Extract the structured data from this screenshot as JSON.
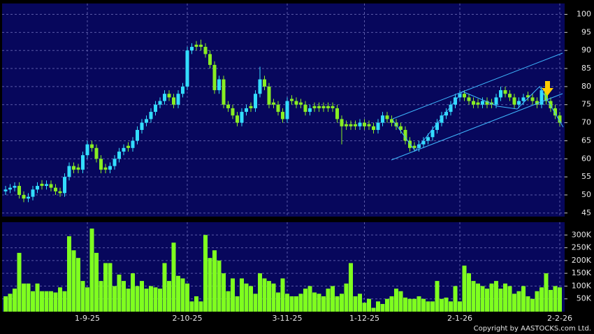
{
  "chart_data": [
    {
      "type": "candlestick",
      "up_color": "#33ddff",
      "down_color": "#88ee22",
      "ylim": [
        44,
        103
      ],
      "yticks": [
        45,
        50,
        55,
        60,
        65,
        70,
        75,
        80,
        85,
        90,
        95,
        100
      ],
      "grid": true,
      "open": [
        51,
        51.5,
        52,
        52.5,
        50,
        49,
        49.5,
        51.5,
        53.1,
        52.5,
        53,
        52,
        51,
        50.5,
        55,
        58,
        57.6,
        57,
        61,
        64,
        63,
        60,
        57.6,
        57,
        58,
        60,
        62,
        63.6,
        63,
        65,
        68,
        70,
        71,
        73,
        75,
        76,
        78,
        77,
        75,
        78,
        80,
        90,
        91.6,
        91.6,
        91,
        89,
        86,
        79,
        82,
        75,
        74,
        72,
        70,
        73,
        74.6,
        74,
        78,
        82,
        80,
        75.6,
        75,
        73,
        71,
        76.6,
        76,
        75.6,
        75,
        73,
        74.6,
        74.6,
        74.6,
        74.6,
        74.6,
        74,
        71,
        69.6,
        69.6,
        69.6,
        69,
        70,
        69.6,
        69,
        68,
        70,
        72,
        71,
        70,
        69,
        68,
        65,
        63.6,
        63,
        64,
        65,
        66,
        68,
        70,
        72,
        73,
        75,
        77,
        78,
        77,
        76,
        75.6,
        75,
        76,
        75.6,
        75,
        77,
        79,
        78,
        77,
        75,
        76,
        77.6,
        77,
        76,
        75,
        79,
        76,
        74,
        72
      ],
      "high": [
        52.5,
        53,
        53.5,
        53.5,
        51,
        50.5,
        52.5,
        53.5,
        54.1,
        54,
        54,
        53,
        52,
        56,
        59,
        59,
        58.6,
        62,
        65,
        65,
        64,
        61,
        58.6,
        59,
        61,
        63,
        64,
        64.6,
        66,
        69,
        71,
        72,
        74,
        76,
        77,
        79,
        79,
        78,
        79,
        81,
        91,
        92,
        92.6,
        93,
        92,
        90,
        87,
        83,
        83,
        76,
        75,
        73,
        74,
        75,
        75.6,
        79,
        85.5,
        83,
        81,
        76.6,
        76,
        74,
        77,
        77.6,
        77,
        76.6,
        76,
        75,
        75.6,
        75.6,
        75.6,
        75.6,
        75.6,
        75,
        72,
        70.6,
        70.6,
        70.6,
        71,
        71,
        70.6,
        70,
        71,
        73,
        73,
        72,
        71,
        70,
        69,
        66,
        64.6,
        65,
        66,
        67,
        69,
        71,
        73,
        74,
        76,
        78,
        79,
        79,
        78,
        77,
        76.6,
        77,
        77,
        76.6,
        78,
        80,
        80,
        79,
        78,
        77,
        78,
        78.6,
        78,
        77,
        80,
        80,
        77,
        75,
        73
      ],
      "low": [
        50,
        50.5,
        51,
        49,
        48,
        48,
        48.5,
        50.5,
        51.5,
        51.5,
        51,
        50,
        49.5,
        49.5,
        54,
        56,
        56,
        56,
        60,
        62,
        59,
        56,
        56,
        56,
        57,
        59,
        61,
        62,
        62,
        64,
        67,
        69,
        70,
        72,
        74,
        75,
        76,
        74,
        74,
        77,
        79,
        89,
        90,
        90,
        88,
        85,
        78,
        78,
        74,
        73,
        71,
        69,
        69,
        72,
        73,
        73,
        77,
        79,
        74,
        74,
        72,
        70,
        70,
        75,
        74,
        74,
        72,
        72,
        73,
        73,
        73,
        73,
        73,
        70,
        64,
        68,
        68,
        68,
        68,
        68,
        68,
        67,
        67,
        69,
        70,
        69,
        68,
        67,
        64,
        62,
        62,
        62,
        63,
        64,
        65,
        67,
        69,
        71,
        72,
        74,
        76,
        76,
        75,
        74,
        74,
        74,
        74,
        74,
        74,
        76,
        77,
        76,
        74,
        74,
        75,
        76,
        75,
        74,
        74,
        75,
        73,
        71,
        69
      ],
      "close": [
        51.5,
        52,
        52.5,
        50,
        49,
        49.5,
        51.5,
        52.5,
        52.5,
        53,
        52,
        51,
        50.5,
        55,
        58,
        57,
        57,
        61,
        64,
        63,
        60,
        57,
        57,
        58,
        60,
        62,
        63,
        63,
        65,
        68,
        70,
        71,
        73,
        75,
        76,
        78,
        77,
        75,
        78,
        80,
        90,
        91,
        91,
        91,
        89,
        86,
        79,
        82,
        75,
        74,
        72,
        70,
        73,
        74,
        74,
        78,
        82,
        80,
        75,
        75,
        73,
        71,
        76,
        76,
        75,
        75,
        73,
        74,
        74,
        74,
        74,
        74,
        74,
        71,
        69,
        69,
        69,
        69,
        70,
        69,
        69,
        68,
        70,
        72,
        71,
        70,
        69,
        68,
        65,
        63,
        63,
        64,
        65,
        66,
        68,
        70,
        72,
        73,
        75,
        77,
        78,
        77,
        76,
        75,
        75,
        76,
        75,
        75,
        77,
        79,
        78,
        77,
        75,
        76,
        77,
        77,
        76,
        75,
        79,
        76,
        74,
        72,
        70
      ]
    },
    {
      "type": "bar",
      "color": "#7fff1f",
      "ylim": [
        0,
        350000
      ],
      "yticks": [
        {
          "value": 50000,
          "label": "50K"
        },
        {
          "value": 100000,
          "label": "100K"
        },
        {
          "value": 150000,
          "label": "150K"
        },
        {
          "value": 200000,
          "label": "200K"
        },
        {
          "value": 250000,
          "label": "250K"
        },
        {
          "value": 300000,
          "label": "300K"
        }
      ],
      "grid": true,
      "categories": [
        null,
        null,
        null,
        null,
        null,
        null,
        null,
        null,
        null,
        null,
        null,
        null,
        null,
        null,
        null,
        null,
        null,
        null,
        "1-9-25",
        null,
        null,
        null,
        null,
        null,
        null,
        null,
        null,
        null,
        null,
        null,
        null,
        null,
        null,
        null,
        null,
        null,
        null,
        null,
        null,
        null,
        "2-10-25",
        null,
        null,
        null,
        null,
        null,
        null,
        null,
        null,
        null,
        null,
        null,
        null,
        null,
        null,
        null,
        null,
        null,
        null,
        null,
        null,
        null,
        "3-11-25",
        null,
        null,
        null,
        null,
        null,
        null,
        null,
        null,
        null,
        null,
        null,
        null,
        null,
        null,
        null,
        null,
        "1-12-25",
        null,
        null,
        null,
        null,
        null,
        null,
        null,
        null,
        null,
        null,
        null,
        null,
        null,
        null,
        null,
        null,
        null,
        null,
        null,
        null,
        "2-1-26",
        null,
        null,
        null,
        null,
        null,
        null,
        null,
        null,
        null,
        null,
        null,
        null,
        null,
        null,
        null,
        null,
        null,
        null,
        null,
        null,
        null,
        "2-2-26"
      ],
      "values": [
        60000,
        70000,
        90000,
        230000,
        110000,
        110000,
        80000,
        110000,
        80000,
        80000,
        80000,
        75000,
        95000,
        80000,
        295000,
        240000,
        210000,
        120000,
        95000,
        325000,
        230000,
        120000,
        190000,
        190000,
        100000,
        145000,
        120000,
        90000,
        150000,
        100000,
        120000,
        90000,
        100000,
        95000,
        90000,
        190000,
        120000,
        270000,
        140000,
        130000,
        110000,
        40000,
        60000,
        40000,
        300000,
        210000,
        240000,
        200000,
        150000,
        80000,
        130000,
        60000,
        130000,
        110000,
        100000,
        70000,
        150000,
        130000,
        120000,
        110000,
        75000,
        130000,
        70000,
        60000,
        60000,
        70000,
        90000,
        100000,
        75000,
        70000,
        60000,
        90000,
        100000,
        60000,
        70000,
        110000,
        190000,
        60000,
        70000,
        35000,
        50000,
        15000,
        40000,
        30000,
        50000,
        60000,
        90000,
        80000,
        55000,
        50000,
        50000,
        60000,
        50000,
        40000,
        40000,
        120000,
        50000,
        55000,
        40000,
        100000,
        40000,
        180000,
        150000,
        120000,
        110000,
        100000,
        90000,
        110000,
        120000,
        90000,
        110000,
        100000,
        70000,
        80000,
        100000,
        60000,
        50000,
        80000,
        95000,
        150000,
        85000,
        100000,
        95000
      ]
    }
  ],
  "copyright": "Copyright by AASTOCKS.com Ltd."
}
